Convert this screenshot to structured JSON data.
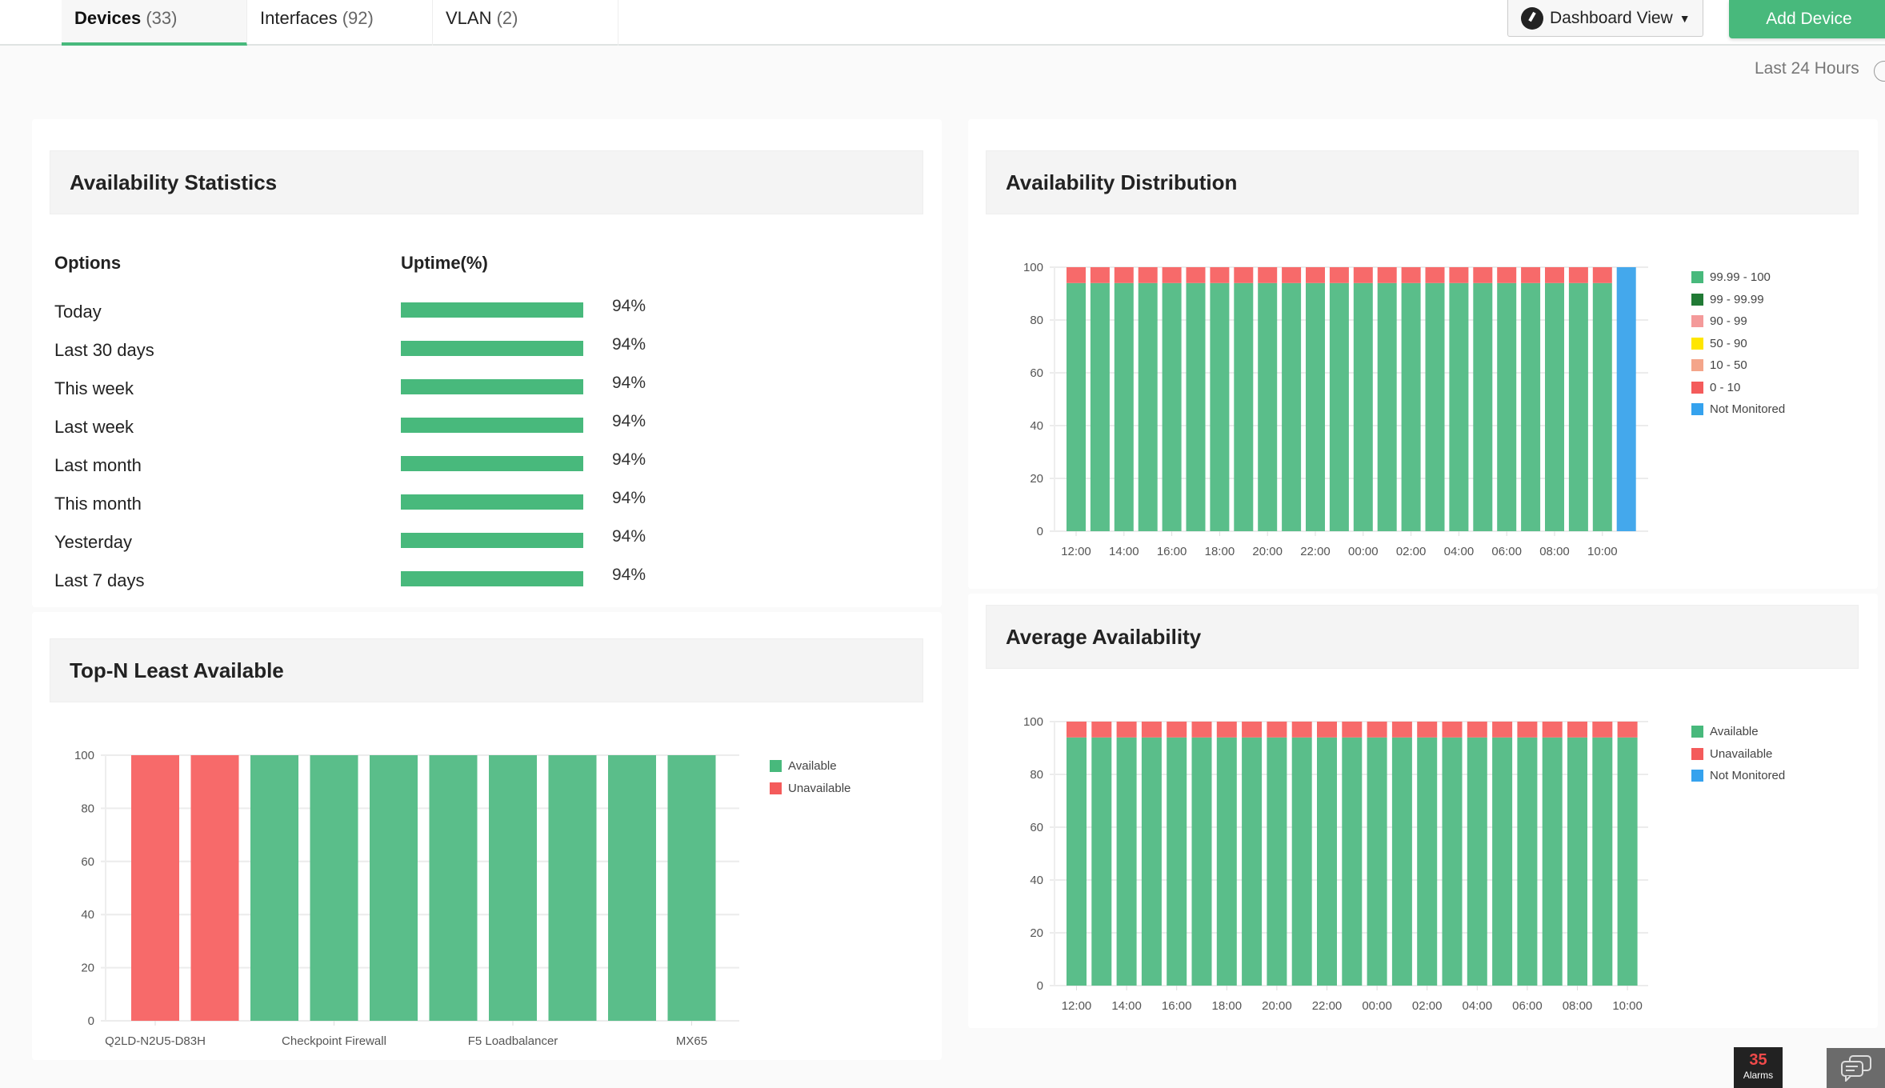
{
  "tabs": [
    {
      "name": "Devices",
      "count": "(33)",
      "active": true
    },
    {
      "name": "Interfaces",
      "count": "(92)",
      "active": false
    },
    {
      "name": "VLAN",
      "count": "(2)",
      "active": false
    }
  ],
  "header": {
    "dashboard_view": "Dashboard View",
    "add_device": "Add Device",
    "period": "Last 24 Hours"
  },
  "availability_statistics": {
    "title": "Availability Statistics",
    "col_options": "Options",
    "col_uptime": "Uptime(%)",
    "rows": [
      {
        "label": "Today",
        "uptime": 94,
        "text": "94%"
      },
      {
        "label": "Last 30 days",
        "uptime": 94,
        "text": "94%"
      },
      {
        "label": "This week",
        "uptime": 94,
        "text": "94%"
      },
      {
        "label": "Last week",
        "uptime": 94,
        "text": "94%"
      },
      {
        "label": "Last month",
        "uptime": 94,
        "text": "94%"
      },
      {
        "label": "This month",
        "uptime": 94,
        "text": "94%"
      },
      {
        "label": "Yesterday",
        "uptime": 94,
        "text": "94%"
      },
      {
        "label": "Last 7 days",
        "uptime": 94,
        "text": "94%"
      }
    ]
  },
  "footer": {
    "alarms_count": "35",
    "alarms_label": "Alarms"
  },
  "chart_data": [
    {
      "id": "distribution",
      "type": "bar",
      "stacked": true,
      "title": "Availability Distribution",
      "ylim": [
        0,
        100
      ],
      "yticks": [
        0,
        20,
        40,
        60,
        80,
        100
      ],
      "grid": true,
      "legend": "right",
      "xtick_labels": [
        "12:00",
        "14:00",
        "16:00",
        "18:00",
        "20:00",
        "22:00",
        "00:00",
        "02:00",
        "04:00",
        "06:00",
        "08:00",
        "10:00"
      ],
      "bar_count": 24,
      "legend_items": [
        {
          "name": "99.99 - 100",
          "color": "#48b97c"
        },
        {
          "name": "99 - 99.99",
          "color": "#217a35"
        },
        {
          "name": "90 - 99",
          "color": "#f49a9a"
        },
        {
          "name": "50 - 90",
          "color": "#ffe600"
        },
        {
          "name": "10 - 50",
          "color": "#f4a58a"
        },
        {
          "name": "0 - 10",
          "color": "#f45b5b"
        },
        {
          "name": "Not Monitored",
          "color": "#35a2ee"
        }
      ],
      "series": [
        {
          "name": "99.99 - 100",
          "color": "#5abe8a",
          "values": [
            94,
            94,
            94,
            94,
            94,
            94,
            94,
            94,
            94,
            94,
            94,
            94,
            94,
            94,
            94,
            94,
            94,
            94,
            94,
            94,
            94,
            94,
            94,
            0
          ]
        },
        {
          "name": "0 - 10",
          "color": "#f76a6a",
          "values": [
            6,
            6,
            6,
            6,
            6,
            6,
            6,
            6,
            6,
            6,
            6,
            6,
            6,
            6,
            6,
            6,
            6,
            6,
            6,
            6,
            6,
            6,
            6,
            0
          ]
        },
        {
          "name": "Not Monitored",
          "color": "#44a8ec",
          "values": [
            0,
            0,
            0,
            0,
            0,
            0,
            0,
            0,
            0,
            0,
            0,
            0,
            0,
            0,
            0,
            0,
            0,
            0,
            0,
            0,
            0,
            0,
            0,
            100
          ]
        }
      ]
    },
    {
      "id": "average",
      "type": "bar",
      "stacked": true,
      "title": "Average Availability",
      "ylim": [
        0,
        100
      ],
      "yticks": [
        0,
        20,
        40,
        60,
        80,
        100
      ],
      "grid": true,
      "legend": "right",
      "xtick_labels": [
        "12:00",
        "14:00",
        "16:00",
        "18:00",
        "20:00",
        "22:00",
        "00:00",
        "02:00",
        "04:00",
        "06:00",
        "08:00",
        "10:00"
      ],
      "bar_count": 23,
      "legend_items": [
        {
          "name": "Available",
          "color": "#48b97c"
        },
        {
          "name": "Unavailable",
          "color": "#f45b5b"
        },
        {
          "name": "Not Monitored",
          "color": "#35a2ee"
        }
      ],
      "series": [
        {
          "name": "Available",
          "color": "#5abe8a",
          "values": [
            94,
            94,
            94,
            94,
            94,
            94,
            94,
            94,
            94,
            94,
            94,
            94,
            94,
            94,
            94,
            94,
            94,
            94,
            94,
            94,
            94,
            94,
            94
          ]
        },
        {
          "name": "Unavailable",
          "color": "#f76a6a",
          "values": [
            6,
            6,
            6,
            6,
            6,
            6,
            6,
            6,
            6,
            6,
            6,
            6,
            6,
            6,
            6,
            6,
            6,
            6,
            6,
            6,
            6,
            6,
            6
          ]
        }
      ]
    },
    {
      "id": "topn",
      "type": "bar",
      "stacked": true,
      "title": "Top-N Least Available",
      "ylim": [
        0,
        100
      ],
      "yticks": [
        0,
        20,
        40,
        60,
        80,
        100
      ],
      "grid": true,
      "legend": "right",
      "categories": [
        "Q2LD-N2U5-D83H",
        "",
        "",
        "Checkpoint Firewall",
        "",
        "",
        "F5 Loadbalancer",
        "",
        "",
        "MX65"
      ],
      "bar_count": 10,
      "legend_items": [
        {
          "name": "Available",
          "color": "#48b97c"
        },
        {
          "name": "Unavailable",
          "color": "#f45b5b"
        }
      ],
      "series": [
        {
          "name": "Available",
          "color": "#5abe8a",
          "values": [
            0,
            0,
            100,
            100,
            100,
            100,
            100,
            100,
            100,
            100
          ]
        },
        {
          "name": "Unavailable",
          "color": "#f76a6a",
          "values": [
            100,
            100,
            0,
            0,
            0,
            0,
            0,
            0,
            0,
            0
          ]
        }
      ]
    }
  ]
}
